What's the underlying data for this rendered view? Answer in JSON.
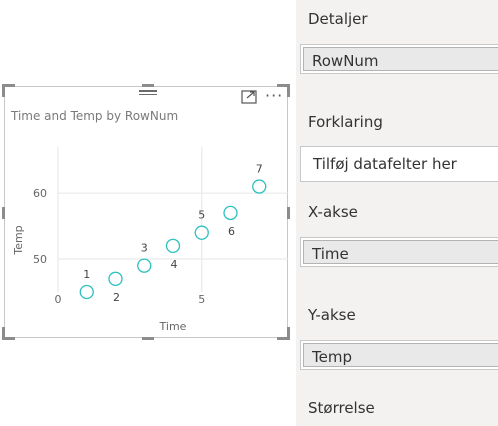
{
  "visual": {
    "title": "Time and Temp by RowNum",
    "more_label": "···",
    "colors": {
      "marker": "#2ebfbf",
      "grid": "#e6e6e6",
      "axis_text": "#666666"
    }
  },
  "chart_data": {
    "type": "scatter",
    "title": "Time and Temp by RowNum",
    "xlabel": "Time",
    "ylabel": "Temp",
    "x_ticks": [
      "0",
      "5"
    ],
    "y_ticks": [
      "50",
      "60"
    ],
    "xlim": [
      0,
      8
    ],
    "ylim": [
      45,
      67
    ],
    "grid": true,
    "points": [
      {
        "label": "1",
        "x": 1,
        "y": 45
      },
      {
        "label": "2",
        "x": 2,
        "y": 47
      },
      {
        "label": "3",
        "x": 3,
        "y": 49
      },
      {
        "label": "4",
        "x": 4,
        "y": 52
      },
      {
        "label": "5",
        "x": 5,
        "y": 54
      },
      {
        "label": "6",
        "x": 6,
        "y": 57
      },
      {
        "label": "7",
        "x": 7,
        "y": 61
      }
    ]
  },
  "pane": {
    "details": {
      "label": "Detaljer",
      "field": "RowNum"
    },
    "legend": {
      "label": "Forklaring",
      "placeholder": "Tilføj datafelter her"
    },
    "x_axis": {
      "label": "X-akse",
      "field": "Time"
    },
    "y_axis": {
      "label": "Y-akse",
      "field": "Temp"
    },
    "size": {
      "label": "Størrelse"
    }
  }
}
